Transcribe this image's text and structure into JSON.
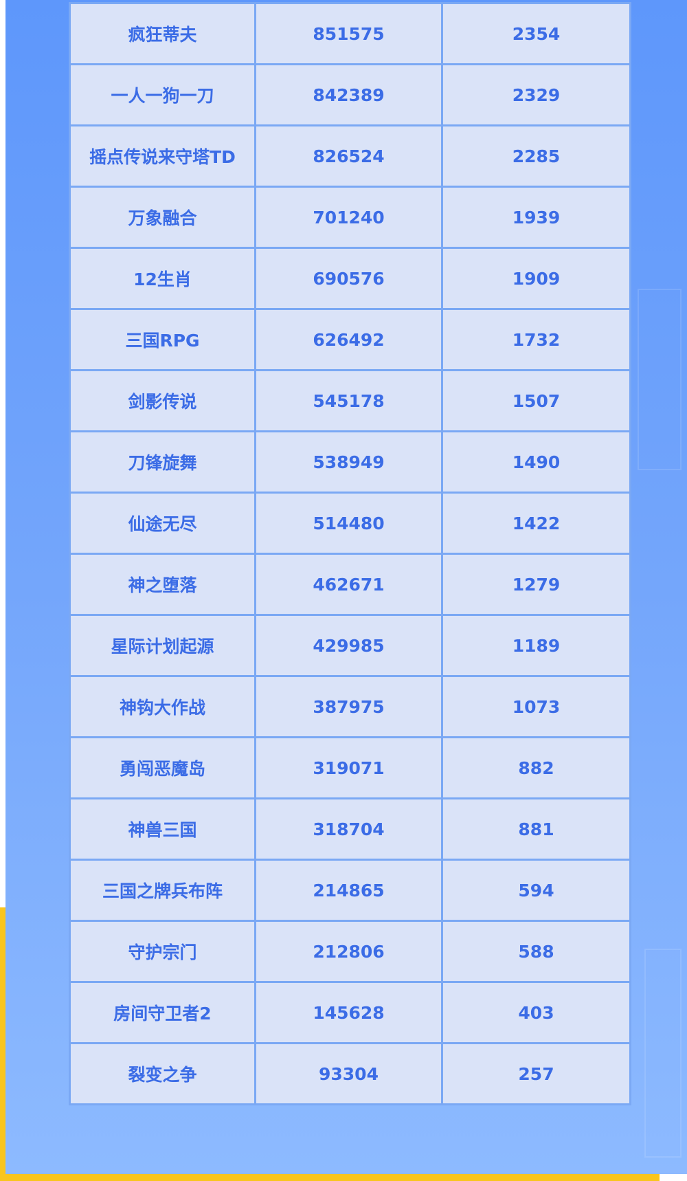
{
  "table": {
    "rows": [
      [
        "疯狂蒂夫",
        "851575",
        "2354"
      ],
      [
        "一人一狗一刀",
        "842389",
        "2329"
      ],
      [
        "摇点传说来守塔TD",
        "826524",
        "2285"
      ],
      [
        "万象融合",
        "701240",
        "1939"
      ],
      [
        "12生肖",
        "690576",
        "1909"
      ],
      [
        "三国RPG",
        "626492",
        "1732"
      ],
      [
        "剑影传说",
        "545178",
        "1507"
      ],
      [
        "刀锋旋舞",
        "538949",
        "1490"
      ],
      [
        "仙途无尽",
        "514480",
        "1422"
      ],
      [
        "神之堕落",
        "462671",
        "1279"
      ],
      [
        "星际计划起源",
        "429985",
        "1189"
      ],
      [
        "神钩大作战",
        "387975",
        "1073"
      ],
      [
        "勇闯恶魔岛",
        "319071",
        "882"
      ],
      [
        "神兽三国",
        "318704",
        "881"
      ],
      [
        "三国之牌兵布阵",
        "214865",
        "594"
      ],
      [
        "守护宗门",
        "212806",
        "588"
      ],
      [
        "房间守卫者2",
        "145628",
        "403"
      ],
      [
        "裂变之争",
        "93304",
        "257"
      ]
    ]
  },
  "colors": {
    "text": "#3b6ce6",
    "cell": "#dae3f8",
    "border": "#7aa8f4",
    "accent": "#f9c51d"
  }
}
